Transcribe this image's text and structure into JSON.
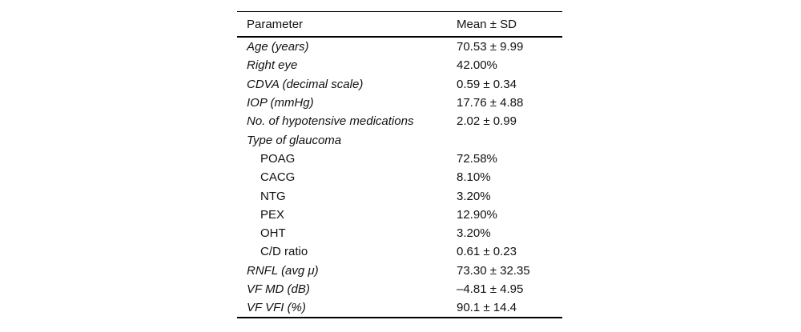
{
  "page": {
    "background_color": "#ffffff",
    "text_color": "#111111",
    "rule_color": "#000000"
  },
  "table": {
    "header": {
      "parameter": "Parameter",
      "mean_sd": "Mean ± SD"
    },
    "rows": [
      {
        "param": "Age (years)",
        "value": "70.53 ± 9.99",
        "style": "main"
      },
      {
        "param": "Right eye",
        "value": "42.00%",
        "style": "main"
      },
      {
        "param": "CDVA (decimal scale)",
        "value": "0.59 ± 0.34",
        "style": "main"
      },
      {
        "param": "IOP (mmHg)",
        "value": "17.76 ± 4.88",
        "style": "main"
      },
      {
        "param": "No. of hypotensive medications",
        "value": "2.02 ± 0.99",
        "style": "main"
      },
      {
        "param": "Type of glaucoma",
        "value": "",
        "style": "main"
      },
      {
        "param": "POAG",
        "value": "72.58%",
        "style": "sub"
      },
      {
        "param": "CACG",
        "value": "8.10%",
        "style": "sub"
      },
      {
        "param": "NTG",
        "value": "3.20%",
        "style": "sub"
      },
      {
        "param": "PEX",
        "value": "12.90%",
        "style": "sub"
      },
      {
        "param": "OHT",
        "value": "3.20%",
        "style": "sub"
      },
      {
        "param": "C/D ratio",
        "value": "0.61 ± 0.23",
        "style": "sub"
      },
      {
        "param": "RNFL (avg μ)",
        "value": "73.30 ± 32.35",
        "style": "main"
      },
      {
        "param": "VF MD (dB)",
        "value": "–4.81 ± 4.95",
        "style": "main"
      },
      {
        "param": "VF VFI (%)",
        "value": "90.1 ± 14.4",
        "style": "main"
      }
    ]
  }
}
